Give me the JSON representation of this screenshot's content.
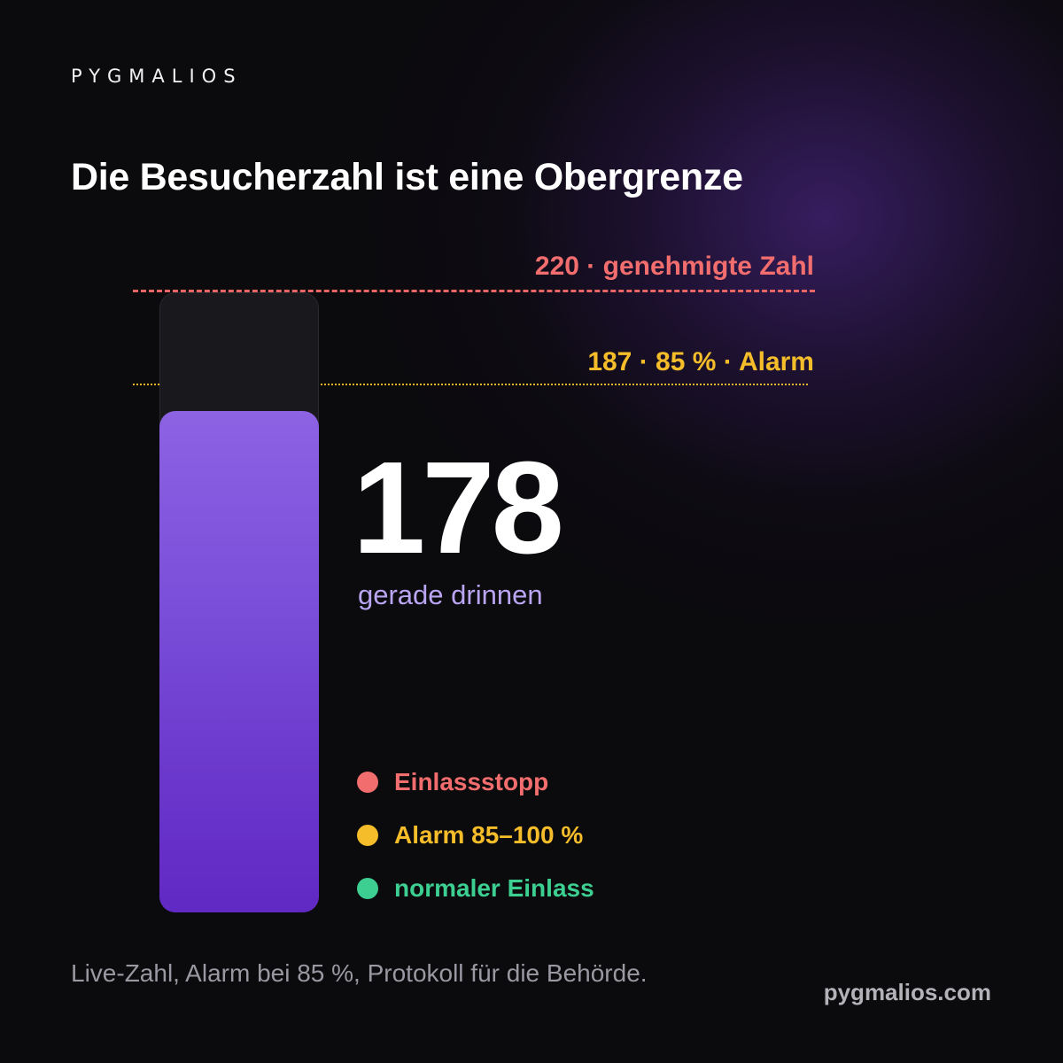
{
  "brand": {
    "logo_text": "PYGMALIOS"
  },
  "title": "Die Besucherzahl ist eine Obergrenze",
  "capacity": {
    "limit_label": "220 · genehmigte Zahl",
    "alarm_label": "187 · 85 % · Alarm",
    "limit_value": 220,
    "alarm_value": 187,
    "current_value": 178,
    "fill_fraction": 0.809
  },
  "current": {
    "number": "178",
    "caption": "gerade drinnen"
  },
  "legend": [
    {
      "label": "Einlassstopp",
      "color": "#f26d6d"
    },
    {
      "label": "Alarm 85–100 %",
      "color": "#f5bd2a"
    },
    {
      "label": "normaler Einlass",
      "color": "#3ccf91"
    }
  ],
  "footnote": "Live-Zahl, Alarm bei 85 %, Protokoll für die Behörde.",
  "domain": "pygmalios.com",
  "colors": {
    "accent_purple": "#7a4ed9",
    "limit_red": "#f26d6d",
    "alarm_yellow": "#f5bd2a",
    "normal_green": "#3ccf91"
  }
}
